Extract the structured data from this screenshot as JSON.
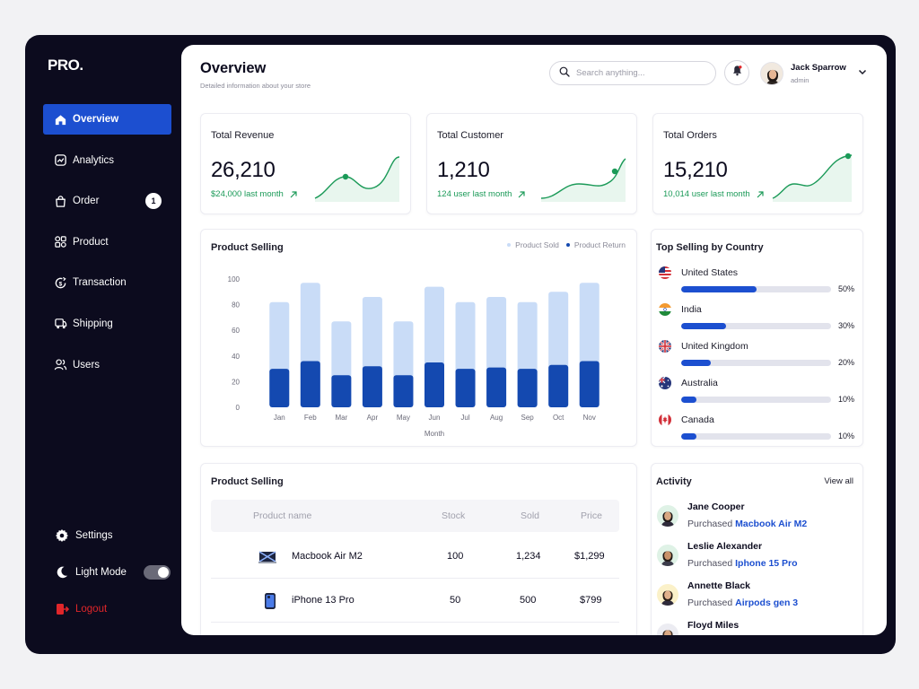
{
  "brand": {
    "logo_text": "PRO",
    "logo_dot": "."
  },
  "sidebar": {
    "items": [
      {
        "label": "Overview",
        "icon": "home-icon",
        "active": true
      },
      {
        "label": "Analytics",
        "icon": "analytics-icon"
      },
      {
        "label": "Order",
        "icon": "bag-icon",
        "badge": "1"
      },
      {
        "label": "Product",
        "icon": "grid-icon"
      },
      {
        "label": "Transaction",
        "icon": "transaction-icon"
      },
      {
        "label": "Shipping",
        "icon": "truck-icon"
      },
      {
        "label": "Users",
        "icon": "users-icon"
      }
    ],
    "settings_label": "Settings",
    "lightmode_label": "Light Mode",
    "logout_label": "Logout"
  },
  "header": {
    "title": "Overview",
    "subtitle": "Detailed information about your store",
    "search_placeholder": "Search anything...",
    "user_name": "Jack Sparrow",
    "user_role": "admin"
  },
  "stats": [
    {
      "label": "Total Revenue",
      "value": "26,210",
      "trend": "$24,000 last month"
    },
    {
      "label": "Total Customer",
      "value": "1,210",
      "trend": "124 user last month"
    },
    {
      "label": "Total Orders",
      "value": "15,210",
      "trend": "10,014 user last month"
    }
  ],
  "chart_data": {
    "type": "bar",
    "title": "Product Selling",
    "xlabel": "Month",
    "ylabel": "",
    "ylim": [
      0,
      100
    ],
    "yticks": [
      "100",
      "80",
      "60",
      "40",
      "20",
      "0"
    ],
    "categories": [
      "Jan",
      "Feb",
      "Mar",
      "Apr",
      "May",
      "Jun",
      "Jul",
      "Aug",
      "Sep",
      "Oct",
      "Nov"
    ],
    "series": [
      {
        "name": "Product Sold",
        "values": [
          82,
          97,
          67,
          86,
          67,
          94,
          82,
          86,
          82,
          90,
          97
        ]
      },
      {
        "name": "Product Return",
        "values": [
          30,
          36,
          25,
          32,
          25,
          35,
          30,
          31,
          30,
          33,
          36
        ]
      }
    ],
    "colors": {
      "sold": "#c9dcf7",
      "return": "#1449b0"
    },
    "legend_position": "top-right",
    "grid": false
  },
  "top_country": {
    "title": "Top Selling by Country",
    "rows": [
      {
        "name": "United States",
        "pct_label": "50%",
        "fraction": 0.5
      },
      {
        "name": "India",
        "pct_label": "30%",
        "fraction": 0.3
      },
      {
        "name": "United Kingdom",
        "pct_label": "20%",
        "fraction": 0.2
      },
      {
        "name": "Australia",
        "pct_label": "10%",
        "fraction": 0.1
      },
      {
        "name": "Canada",
        "pct_label": "10%",
        "fraction": 0.1
      }
    ]
  },
  "product_table": {
    "title": "Product Selling",
    "columns": [
      "Product name",
      "Stock",
      "Sold",
      "Price"
    ],
    "rows": [
      {
        "name": "Macbook Air M2",
        "stock": "100",
        "sold": "1,234",
        "price": "$1,299"
      },
      {
        "name": "iPhone 13 Pro",
        "stock": "50",
        "sold": "500",
        "price": "$799"
      }
    ]
  },
  "activity": {
    "title": "Activity",
    "view_all": "View all",
    "items": [
      {
        "name": "Jane Cooper",
        "verb": "Purchased",
        "product": "Macbook Air M2"
      },
      {
        "name": "Leslie Alexander",
        "verb": "Purchased",
        "product": "Iphone 15 Pro"
      },
      {
        "name": "Annette Black",
        "verb": "Purchased",
        "product": "Airpods gen 3"
      },
      {
        "name": "Floyd Miles",
        "verb": "",
        "product": ""
      }
    ]
  }
}
